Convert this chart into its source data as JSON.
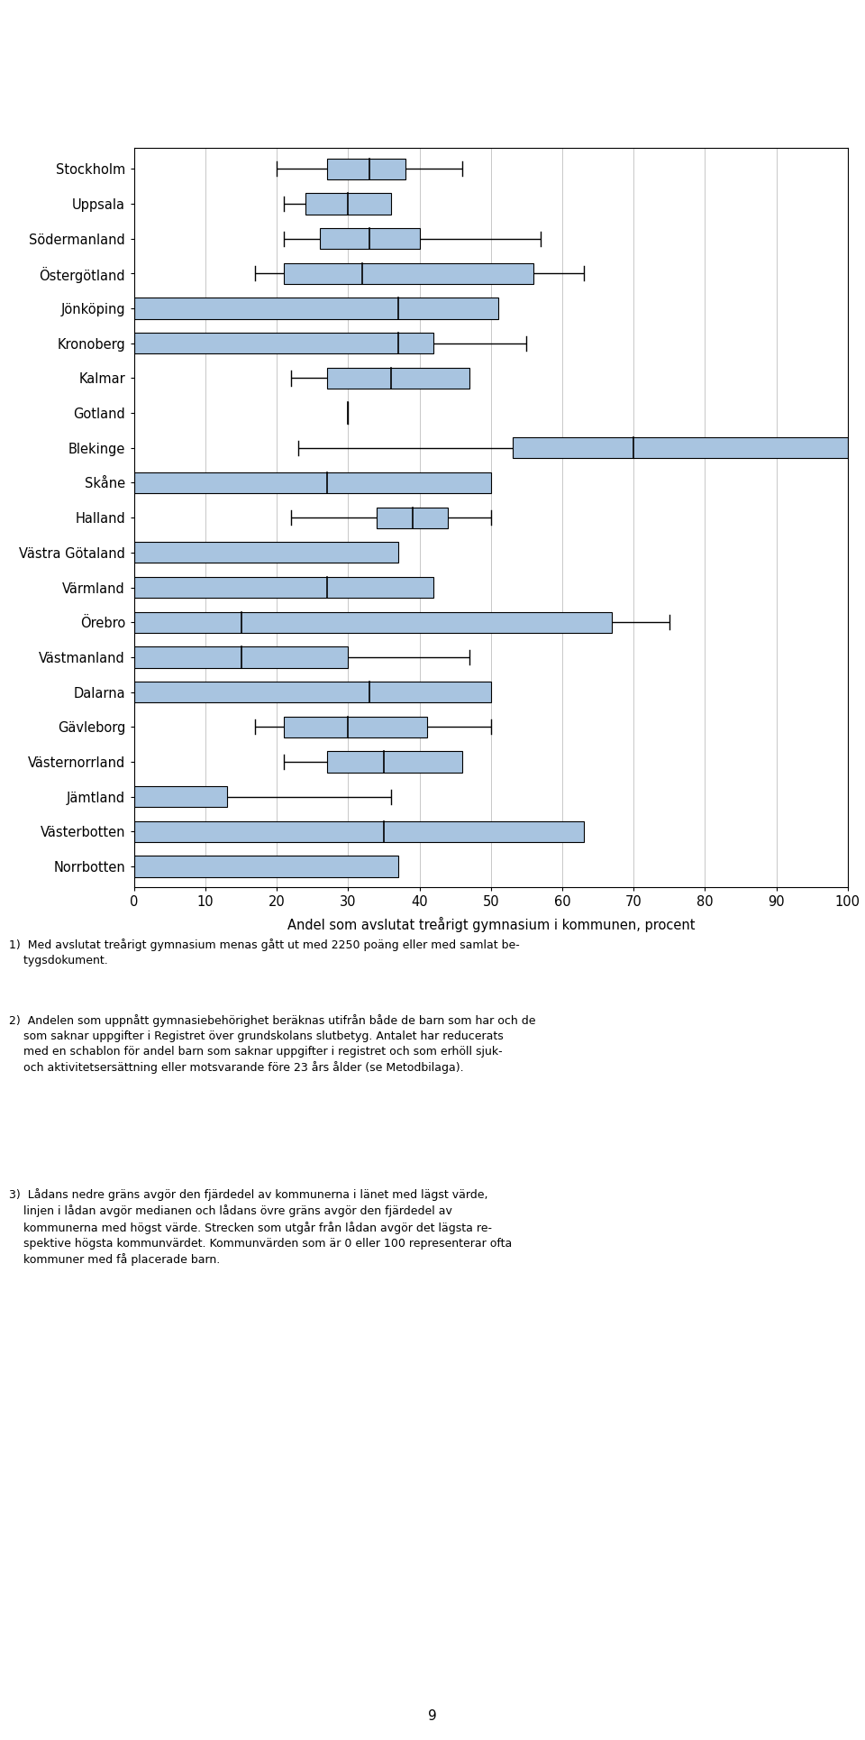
{
  "xlabel": "Andel som avslutat treårigt gymnasium i kommunen, procent",
  "footnote1": "1)  Med avslutat treårigt gymnasium menas gått ut med 2250 poäng eller med samlat be-\n    tygsdokument.",
  "footnote2": "2)  Andelen som uppnått gymnasiebehörighet beräknas utifrån både de barn som har och de\n    som saknar uppgifter i  Registret över grundskolans slutbetyg. Antalet har reducerats\n    med en schablon för andel barn som saknar uppgifter i registret och som erhöll sjuk-\n    och aktivitetsersättning eller motsvarande före 23 års ålder (se Metodbilaga).",
  "footnote3": "3)  Lådans nedre gräns avgör den fjärdedel av kommunerna i länet med lägst värde,\n    linjen i lådan avgör medianen och lådans övre gräns avgör den fjärdedel av\n    kommunerna med högst värde. Strecken som utgår från lådan avgör det lägsta re-\n    spektive högsta kommunvärdet. Kommunvärden som är 0 eller 100 representerar ofta\n    kommuner med få placerade barn.",
  "page_number": "9",
  "box_data": [
    {
      "name": "Stockholm",
      "whisker_lo": 20,
      "q1": 27,
      "median": 33,
      "q3": 38,
      "whisker_hi": 46
    },
    {
      "name": "Uppsala",
      "whisker_lo": 21,
      "q1": 24,
      "median": 30,
      "q3": 36,
      "whisker_hi": 36
    },
    {
      "name": "Södermanland",
      "whisker_lo": 21,
      "q1": 26,
      "median": 33,
      "q3": 40,
      "whisker_hi": 57
    },
    {
      "name": "Östergötland",
      "whisker_lo": 17,
      "q1": 21,
      "median": 32,
      "q3": 56,
      "whisker_hi": 63
    },
    {
      "name": "Jönköping",
      "whisker_lo": 0,
      "q1": 0,
      "median": 37,
      "q3": 51,
      "whisker_hi": 51
    },
    {
      "name": "Kronoberg",
      "whisker_lo": 0,
      "q1": 0,
      "median": 37,
      "q3": 42,
      "whisker_hi": 55
    },
    {
      "name": "Kalmar",
      "whisker_lo": 22,
      "q1": 27,
      "median": 36,
      "q3": 47,
      "whisker_hi": 47
    },
    {
      "name": "Gotland",
      "whisker_lo": 30,
      "q1": 30,
      "median": 30,
      "q3": 30,
      "whisker_hi": 30
    },
    {
      "name": "Blekinge",
      "whisker_lo": 23,
      "q1": 53,
      "median": 70,
      "q3": 100,
      "whisker_hi": 100
    },
    {
      "name": "Skåne",
      "whisker_lo": 0,
      "q1": 0,
      "median": 27,
      "q3": 50,
      "whisker_hi": 50
    },
    {
      "name": "Halland",
      "whisker_lo": 22,
      "q1": 34,
      "median": 39,
      "q3": 44,
      "whisker_hi": 50
    },
    {
      "name": "Västra Götaland",
      "whisker_lo": 0,
      "q1": 0,
      "median": 0,
      "q3": 37,
      "whisker_hi": 37
    },
    {
      "name": "Värmland",
      "whisker_lo": 0,
      "q1": 0,
      "median": 27,
      "q3": 42,
      "whisker_hi": 42
    },
    {
      "name": "Örebro",
      "whisker_lo": 0,
      "q1": 0,
      "median": 15,
      "q3": 67,
      "whisker_hi": 75
    },
    {
      "name": "Västmanland",
      "whisker_lo": 0,
      "q1": 0,
      "median": 15,
      "q3": 30,
      "whisker_hi": 47
    },
    {
      "name": "Dalarna",
      "whisker_lo": 0,
      "q1": 0,
      "median": 33,
      "q3": 50,
      "whisker_hi": 50
    },
    {
      "name": "Gävleborg",
      "whisker_lo": 17,
      "q1": 21,
      "median": 30,
      "q3": 41,
      "whisker_hi": 50
    },
    {
      "name": "Västernorrland",
      "whisker_lo": 21,
      "q1": 27,
      "median": 35,
      "q3": 46,
      "whisker_hi": 46
    },
    {
      "name": "Jämtland",
      "whisker_lo": 0,
      "q1": 0,
      "median": 0,
      "q3": 13,
      "whisker_hi": 36
    },
    {
      "name": "Västerbotten",
      "whisker_lo": 0,
      "q1": 0,
      "median": 35,
      "q3": 63,
      "whisker_hi": 63
    },
    {
      "name": "Norrbotten",
      "whisker_lo": 0,
      "q1": 0,
      "median": 0,
      "q3": 37,
      "whisker_hi": 37
    }
  ],
  "box_color": "#a8c4e0",
  "box_edge_color": "#000000",
  "whisker_color": "#000000",
  "median_color": "#000000",
  "xlim": [
    0,
    100
  ],
  "xticks": [
    0,
    10,
    20,
    30,
    40,
    50,
    60,
    70,
    80,
    90,
    100
  ],
  "grid_color": "#c8c8c8",
  "bar_height": 0.6
}
